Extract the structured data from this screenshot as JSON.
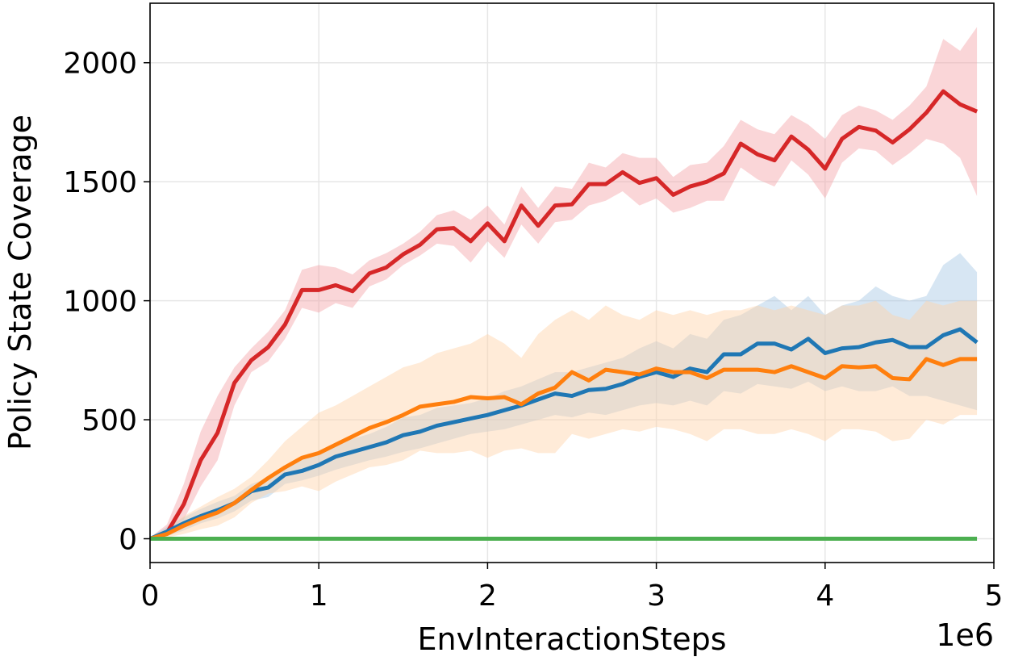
{
  "chart_data": {
    "type": "line",
    "title": "",
    "xlabel": "EnvInteractionSteps",
    "ylabel": "Policy State Coverage",
    "x_offset_label": "1e6",
    "xlim": [
      0,
      5
    ],
    "ylim": [
      -100,
      2250
    ],
    "xticks": [
      0,
      1,
      2,
      3,
      4,
      5
    ],
    "xtick_labels": [
      "0",
      "1",
      "2",
      "3",
      "4",
      "5"
    ],
    "yticks": [
      0,
      500,
      1000,
      1500,
      2000
    ],
    "ytick_labels": [
      "0",
      "500",
      "1000",
      "1500",
      "2000"
    ],
    "grid": true,
    "x": [
      0,
      0.1,
      0.2,
      0.3,
      0.4,
      0.5,
      0.6,
      0.7,
      0.8,
      0.9,
      1.0,
      1.1,
      1.2,
      1.3,
      1.4,
      1.5,
      1.6,
      1.7,
      1.8,
      1.9,
      2.0,
      2.1,
      2.2,
      2.3,
      2.4,
      2.5,
      2.6,
      2.7,
      2.8,
      2.9,
      3.0,
      3.1,
      3.2,
      3.3,
      3.4,
      3.5,
      3.6,
      3.7,
      3.8,
      3.9,
      4.0,
      4.1,
      4.2,
      4.3,
      4.4,
      4.5,
      4.6,
      4.7,
      4.8,
      4.9
    ],
    "series": [
      {
        "color": "#d62728",
        "band_color": "#f4a3a8",
        "values": [
          0,
          25,
          145,
          330,
          445,
          655,
          750,
          805,
          900,
          1045,
          1045,
          1065,
          1040,
          1115,
          1140,
          1195,
          1235,
          1300,
          1305,
          1250,
          1325,
          1250,
          1400,
          1315,
          1400,
          1405,
          1490,
          1490,
          1540,
          1495,
          1515,
          1445,
          1480,
          1500,
          1535,
          1660,
          1615,
          1590,
          1690,
          1635,
          1555,
          1680,
          1730,
          1715,
          1665,
          1720,
          1790,
          1880,
          1825,
          1795
        ],
        "upper": [
          5,
          60,
          230,
          450,
          600,
          720,
          800,
          870,
          960,
          1130,
          1150,
          1140,
          1110,
          1170,
          1200,
          1240,
          1290,
          1360,
          1380,
          1340,
          1400,
          1320,
          1480,
          1390,
          1480,
          1470,
          1580,
          1560,
          1620,
          1600,
          1600,
          1520,
          1570,
          1580,
          1650,
          1760,
          1720,
          1700,
          1780,
          1740,
          1680,
          1780,
          1820,
          1800,
          1760,
          1820,
          1900,
          2100,
          2050,
          2150
        ],
        "lower": [
          0,
          10,
          80,
          220,
          330,
          560,
          700,
          745,
          840,
          970,
          950,
          990,
          970,
          1060,
          1090,
          1150,
          1190,
          1240,
          1230,
          1160,
          1250,
          1180,
          1320,
          1240,
          1330,
          1340,
          1400,
          1420,
          1460,
          1400,
          1430,
          1370,
          1390,
          1420,
          1420,
          1560,
          1510,
          1480,
          1590,
          1530,
          1430,
          1580,
          1640,
          1630,
          1570,
          1620,
          1680,
          1660,
          1600,
          1440
        ]
      },
      {
        "color": "#1f77b4",
        "band_color": "#a6c8e4",
        "values": [
          0,
          30,
          65,
          95,
          120,
          150,
          200,
          215,
          270,
          285,
          310,
          345,
          365,
          385,
          405,
          435,
          450,
          475,
          490,
          505,
          520,
          540,
          560,
          585,
          610,
          600,
          625,
          630,
          650,
          680,
          700,
          680,
          715,
          700,
          775,
          775,
          820,
          820,
          795,
          840,
          780,
          800,
          805,
          825,
          835,
          805,
          805,
          855,
          880,
          825
        ],
        "upper": [
          5,
          50,
          90,
          125,
          155,
          180,
          230,
          255,
          310,
          330,
          360,
          400,
          420,
          440,
          470,
          510,
          520,
          550,
          560,
          570,
          590,
          620,
          640,
          670,
          700,
          700,
          720,
          740,
          760,
          800,
          830,
          800,
          860,
          840,
          920,
          940,
          980,
          1020,
          960,
          1020,
          940,
          980,
          1000,
          1060,
          1020,
          1000,
          1020,
          1150,
          1200,
          1120
        ],
        "lower": [
          0,
          10,
          35,
          65,
          85,
          115,
          160,
          175,
          230,
          245,
          265,
          290,
          310,
          330,
          345,
          365,
          380,
          400,
          420,
          440,
          450,
          460,
          480,
          500,
          520,
          510,
          530,
          520,
          540,
          560,
          570,
          560,
          580,
          560,
          620,
          610,
          650,
          640,
          630,
          660,
          620,
          640,
          620,
          620,
          640,
          600,
          600,
          580,
          560,
          540
        ]
      },
      {
        "color": "#ff7f0e",
        "band_color": "#ffd2a8",
        "values": [
          0,
          20,
          55,
          85,
          110,
          150,
          205,
          255,
          300,
          340,
          360,
          395,
          430,
          465,
          490,
          520,
          555,
          565,
          575,
          595,
          590,
          595,
          565,
          610,
          635,
          700,
          665,
          710,
          700,
          690,
          715,
          700,
          700,
          675,
          710,
          710,
          710,
          700,
          725,
          700,
          675,
          725,
          720,
          725,
          675,
          670,
          755,
          730,
          755,
          755
        ],
        "upper": [
          5,
          45,
          95,
          135,
          175,
          210,
          260,
          330,
          410,
          470,
          530,
          560,
          600,
          640,
          680,
          720,
          740,
          780,
          800,
          820,
          860,
          820,
          760,
          860,
          920,
          960,
          920,
          980,
          940,
          920,
          960,
          940,
          960,
          940,
          960,
          960,
          980,
          960,
          980,
          960,
          940,
          980,
          980,
          1000,
          940,
          920,
          1000,
          980,
          1000,
          1000
        ],
        "lower": [
          0,
          5,
          20,
          40,
          55,
          90,
          150,
          190,
          200,
          220,
          200,
          240,
          270,
          300,
          310,
          330,
          370,
          360,
          360,
          370,
          340,
          370,
          380,
          360,
          360,
          440,
          420,
          440,
          460,
          450,
          470,
          460,
          440,
          410,
          460,
          460,
          440,
          440,
          460,
          440,
          410,
          460,
          460,
          450,
          410,
          420,
          500,
          480,
          520,
          520
        ]
      },
      {
        "color": "#4caf50",
        "band_color": "#b7e1b9",
        "values": [
          0,
          0,
          0,
          0,
          0,
          0,
          0,
          0,
          0,
          0,
          0,
          0,
          0,
          0,
          0,
          0,
          0,
          0,
          0,
          0,
          0,
          0,
          0,
          0,
          0,
          0,
          0,
          0,
          0,
          0,
          0,
          0,
          0,
          0,
          0,
          0,
          0,
          0,
          0,
          0,
          0,
          0,
          0,
          0,
          0,
          0,
          0,
          0,
          0,
          0
        ],
        "upper": [
          0,
          0,
          0,
          0,
          0,
          0,
          0,
          0,
          0,
          0,
          0,
          0,
          0,
          0,
          0,
          0,
          0,
          0,
          0,
          0,
          0,
          0,
          0,
          0,
          0,
          0,
          0,
          0,
          0,
          0,
          0,
          0,
          0,
          0,
          0,
          0,
          0,
          0,
          0,
          0,
          0,
          0,
          0,
          0,
          0,
          0,
          0,
          0,
          0,
          0
        ],
        "lower": [
          0,
          0,
          0,
          0,
          0,
          0,
          0,
          0,
          0,
          0,
          0,
          0,
          0,
          0,
          0,
          0,
          0,
          0,
          0,
          0,
          0,
          0,
          0,
          0,
          0,
          0,
          0,
          0,
          0,
          0,
          0,
          0,
          0,
          0,
          0,
          0,
          0,
          0,
          0,
          0,
          0,
          0,
          0,
          0,
          0,
          0,
          0,
          0,
          0,
          0
        ]
      }
    ]
  }
}
